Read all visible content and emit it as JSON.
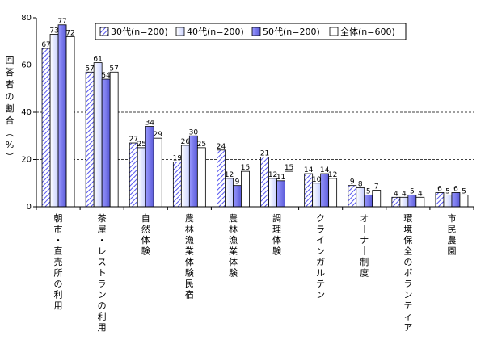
{
  "chart_data": {
    "type": "bar",
    "ylabel": "回答者の割合（%）",
    "ylim": [
      0,
      80
    ],
    "yticks": [
      0,
      20,
      40,
      60,
      80
    ],
    "grid": "horizontal dashed",
    "legend_position": "top-right",
    "categories": [
      "朝市・直売所の利用",
      "茶屋・レストランの利用",
      "自然体験",
      "農林漁業体験民宿",
      "農林漁業体験",
      "調理体験",
      "クラインガルテン",
      "オーナー制度",
      "環境保全のボランティア",
      "市民農園"
    ],
    "series": [
      {
        "name": "30代(n=200)",
        "values": [
          67,
          57,
          27,
          19,
          24,
          21,
          14,
          9,
          4,
          6
        ],
        "labels": [
          "67",
          "57",
          "27",
          "19",
          "24",
          "21",
          "14",
          "9",
          "4",
          "6"
        ],
        "style": "hatch",
        "color": "#6666ff"
      },
      {
        "name": "40代(n=200)",
        "values": [
          73,
          61,
          25,
          26,
          12,
          12,
          10,
          8,
          4,
          5
        ],
        "labels": [
          "73",
          "61",
          "25",
          "26",
          "12",
          "12",
          "10",
          "8",
          "4",
          "5"
        ],
        "style": "gradient",
        "color": "#e8ecff"
      },
      {
        "name": "50代(n=200)",
        "values": [
          77,
          54,
          34,
          30,
          9,
          11,
          14,
          5,
          5,
          6
        ],
        "labels": [
          "77",
          "54",
          "34",
          "30",
          "9",
          "11",
          "14",
          "5",
          "5",
          "6"
        ],
        "style": "solid",
        "color": "#7777ee"
      },
      {
        "name": "全体(n=600)",
        "values": [
          72,
          57,
          29,
          25,
          15,
          15,
          12,
          7,
          4,
          5
        ],
        "labels": [
          "72",
          "57",
          "29",
          "25",
          "15",
          "15",
          "12",
          "7",
          "4",
          "5"
        ],
        "style": "white",
        "color": "#ffffff"
      }
    ]
  }
}
